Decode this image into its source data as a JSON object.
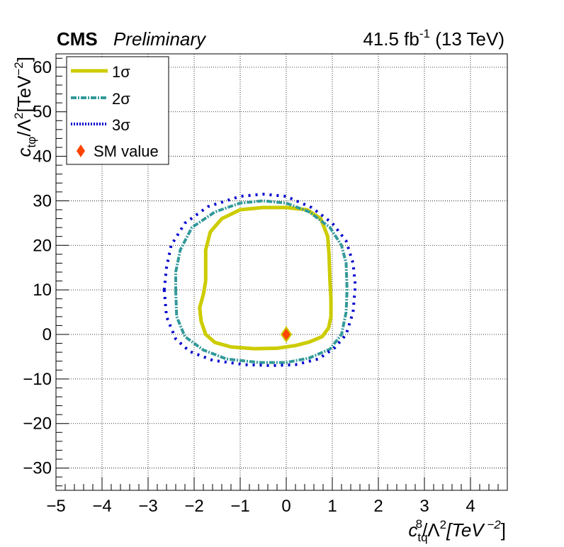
{
  "header": {
    "experiment": "CMS",
    "status": "Preliminary",
    "lumi_value": "41.5 fb",
    "lumi_exp": "-1",
    "energy": " (13 TeV)"
  },
  "axes": {
    "x_main": "c",
    "x_sub": "tq",
    "x_sup": "8",
    "x_rest": "/Λ",
    "x_sq": "2",
    "x_unit": "[TeV",
    "x_unit_exp": " −2",
    "x_close": "]",
    "y_main": "c",
    "y_sub": "tφ",
    "y_rest": "/Λ",
    "y_sq": "2",
    "y_unit": "[TeV",
    "y_unit_exp": "−2",
    "y_close": "]"
  },
  "legend": [
    {
      "label": "1σ",
      "style": "solid",
      "color": "#cccc00"
    },
    {
      "label": "2σ",
      "style": "dash-dot",
      "color": "#339999"
    },
    {
      "label": "3σ",
      "style": "dotted",
      "color": "#0000cc"
    },
    {
      "label": "SM value",
      "style": "marker",
      "color": "#ff4400"
    }
  ],
  "chart_data": {
    "type": "contour",
    "xlim": [
      -5,
      4.8
    ],
    "ylim": [
      -35,
      63
    ],
    "x_ticks": [
      -5,
      -4,
      -3,
      -2,
      -1,
      0,
      1,
      2,
      3,
      4
    ],
    "x_tick_labels": [
      "−5",
      "−4",
      "−3",
      "−2",
      "−1",
      "0",
      "1",
      "2",
      "3",
      "4"
    ],
    "y_ticks": [
      -30,
      -20,
      -10,
      0,
      10,
      20,
      30,
      40,
      50,
      60
    ],
    "y_tick_labels": [
      "−30",
      "−20",
      "−10",
      "0",
      "10",
      "20",
      "30",
      "40",
      "50",
      "60"
    ],
    "grid": true,
    "legend_position": "top-left",
    "series": [
      {
        "name": "1σ",
        "color": "#cccc00",
        "points": [
          [
            -1.75,
            12
          ],
          [
            -1.8,
            9
          ],
          [
            -1.88,
            6
          ],
          [
            -1.85,
            3
          ],
          [
            -1.75,
            0
          ],
          [
            -1.55,
            -1.8
          ],
          [
            -1.2,
            -2.8
          ],
          [
            -0.7,
            -3.2
          ],
          [
            -0.2,
            -3.1
          ],
          [
            0.2,
            -2.5
          ],
          [
            0.5,
            -1.7
          ],
          [
            0.78,
            -0.5
          ],
          [
            0.92,
            1.5
          ],
          [
            0.97,
            4
          ],
          [
            0.97,
            8
          ],
          [
            0.95,
            12
          ],
          [
            0.93,
            18
          ],
          [
            0.9,
            22
          ],
          [
            0.75,
            26
          ],
          [
            0.45,
            28
          ],
          [
            0,
            28.5
          ],
          [
            -0.5,
            28.5
          ],
          [
            -1,
            28
          ],
          [
            -1.4,
            26
          ],
          [
            -1.65,
            23
          ],
          [
            -1.75,
            19
          ],
          [
            -1.75,
            14
          ],
          [
            -1.75,
            12
          ]
        ]
      },
      {
        "name": "2σ",
        "color": "#339999",
        "points": [
          [
            -2.4,
            10
          ],
          [
            -2.38,
            4
          ],
          [
            -2.2,
            -0.5
          ],
          [
            -1.8,
            -3.5
          ],
          [
            -1.3,
            -5.5
          ],
          [
            -0.6,
            -6.3
          ],
          [
            0,
            -6.3
          ],
          [
            0.5,
            -5.3
          ],
          [
            0.95,
            -3.3
          ],
          [
            1.2,
            0
          ],
          [
            1.3,
            5
          ],
          [
            1.32,
            10
          ],
          [
            1.3,
            16
          ],
          [
            1.2,
            20
          ],
          [
            0.95,
            24
          ],
          [
            0.5,
            27.5
          ],
          [
            0,
            29.5
          ],
          [
            -0.5,
            30
          ],
          [
            -1,
            29.5
          ],
          [
            -1.55,
            27.5
          ],
          [
            -2.05,
            24
          ],
          [
            -2.3,
            19
          ],
          [
            -2.4,
            14
          ],
          [
            -2.4,
            10
          ]
        ]
      },
      {
        "name": "3σ",
        "color": "#0000cc",
        "points": [
          [
            -2.65,
            10
          ],
          [
            -2.6,
            4
          ],
          [
            -2.4,
            -1
          ],
          [
            -2.1,
            -3.8
          ],
          [
            -1.6,
            -5.8
          ],
          [
            -0.9,
            -6.8
          ],
          [
            -0.3,
            -7
          ],
          [
            0.2,
            -6.8
          ],
          [
            0.7,
            -5.5
          ],
          [
            1.05,
            -3
          ],
          [
            1.3,
            0
          ],
          [
            1.45,
            5
          ],
          [
            1.5,
            11
          ],
          [
            1.45,
            16
          ],
          [
            1.3,
            21
          ],
          [
            1,
            25
          ],
          [
            0.55,
            28.5
          ],
          [
            0,
            31
          ],
          [
            -0.5,
            31.5
          ],
          [
            -1,
            31
          ],
          [
            -1.7,
            28.7
          ],
          [
            -2.2,
            25
          ],
          [
            -2.5,
            20
          ],
          [
            -2.6,
            15
          ],
          [
            -2.65,
            10
          ]
        ]
      }
    ],
    "sm_value": {
      "name": "SM value",
      "x": 0,
      "y": 0,
      "color": "#ff4400"
    }
  }
}
